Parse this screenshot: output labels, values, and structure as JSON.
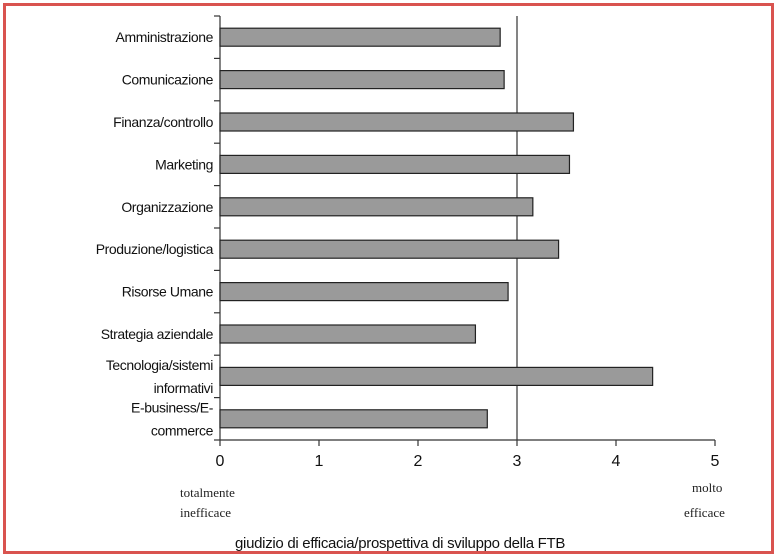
{
  "chart_data": {
    "type": "bar",
    "orientation": "horizontal",
    "categories": [
      [
        "Amministrazione"
      ],
      [
        "Comunicazione"
      ],
      [
        "Finanza/controllo"
      ],
      [
        "Marketing"
      ],
      [
        "Organizzazione"
      ],
      [
        "Produzione/logistica"
      ],
      [
        "Risorse Umane"
      ],
      [
        "Strategia aziendale"
      ],
      [
        "Tecnologia/sistemi",
        "informativi"
      ],
      [
        "E-business/E-",
        "commerce"
      ]
    ],
    "values": [
      2.83,
      2.87,
      3.57,
      3.53,
      3.16,
      3.42,
      2.91,
      2.58,
      4.37,
      2.7
    ],
    "xlim": [
      0,
      5
    ],
    "xticks": [
      "0",
      "1",
      "2",
      "3",
      "4",
      "5"
    ],
    "reference_line": 3,
    "xlabel": "giudizio di efficacia/prospettiva di sviluppo della FTB",
    "scale_low_label": [
      "totalmente",
      "inefficace"
    ],
    "scale_high_label": [
      "molto",
      "efficace"
    ],
    "bar_color": "#9a9a9a",
    "bar_edge_color": "#222222",
    "frame_color": "#d9534f",
    "grid": false
  }
}
